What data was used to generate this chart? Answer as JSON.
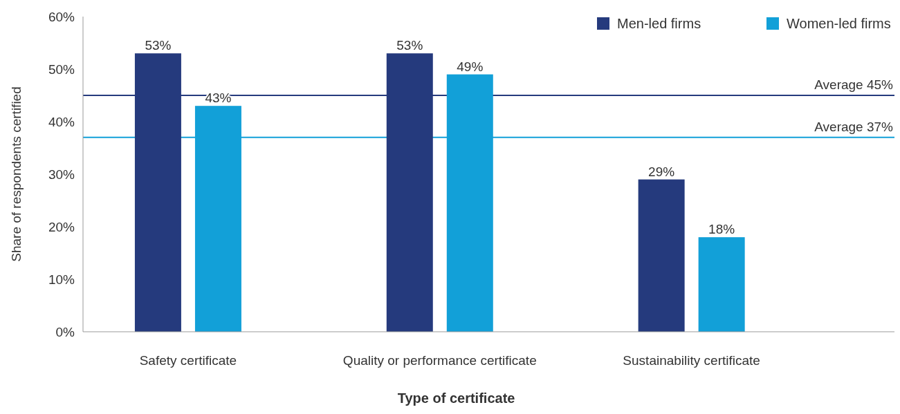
{
  "chart_data": {
    "type": "bar",
    "xlabel": "Type of certificate",
    "ylabel": "Share of respondents certified",
    "categories": [
      "Safety certificate",
      "Quality or performance certificate",
      "Sustainability certificate"
    ],
    "series": [
      {
        "name": "Men-led firms",
        "color": "#253a7d",
        "values": [
          53,
          53,
          29
        ]
      },
      {
        "name": "Women-led firms",
        "color": "#12a0d8",
        "values": [
          43,
          49,
          18
        ]
      }
    ],
    "ylim": [
      0,
      60
    ],
    "yticks": [
      {
        "value": 0,
        "label": "0%"
      },
      {
        "value": 10,
        "label": "10%"
      },
      {
        "value": 20,
        "label": "20%"
      },
      {
        "value": 30,
        "label": "30%"
      },
      {
        "value": 40,
        "label": "40%"
      },
      {
        "value": 50,
        "label": "50%"
      },
      {
        "value": 60,
        "label": "60%"
      }
    ],
    "value_labels": [
      [
        "53%",
        "53%",
        "29%"
      ],
      [
        "43%",
        "49%",
        "18%"
      ]
    ],
    "ref_lines": [
      {
        "axis": "y",
        "value": 45,
        "label": "Average 45%",
        "color": "#253a7d"
      },
      {
        "axis": "y",
        "value": 37,
        "label": "Average 37%",
        "color": "#12a0d8"
      }
    ],
    "legend": "top right",
    "grid": false
  }
}
